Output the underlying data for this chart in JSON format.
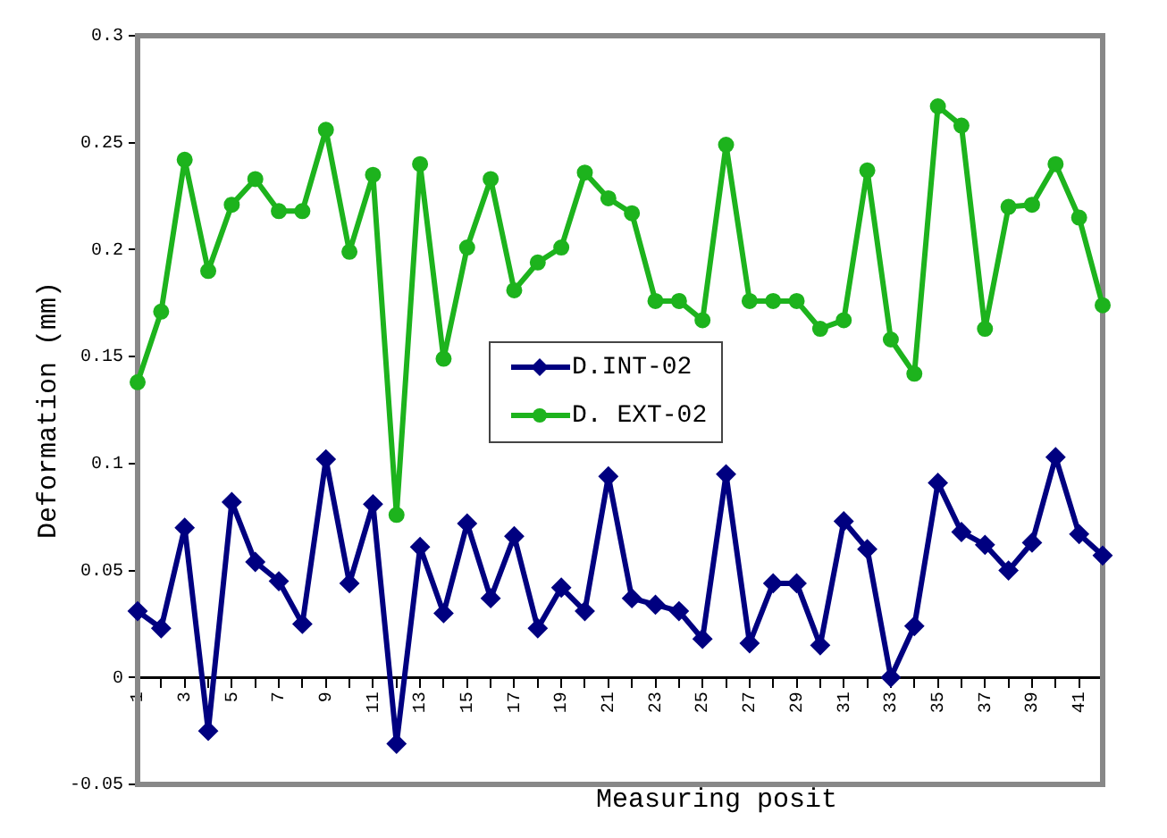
{
  "chart_data": {
    "type": "line",
    "xlabel": "Measuring posit",
    "ylabel": "Deformation (mm)",
    "categories": [
      "1",
      null,
      "3",
      null,
      "5",
      null,
      "7",
      null,
      "9",
      null,
      "11",
      null,
      "13",
      null,
      "15",
      null,
      "17",
      null,
      "19",
      null,
      "21",
      null,
      "23",
      null,
      "25",
      null,
      "27",
      null,
      "29",
      null,
      "31",
      null,
      "33",
      null,
      "35",
      null,
      "37",
      null,
      "39",
      null,
      "41",
      null
    ],
    "series": [
      {
        "name": "D.INT-02",
        "color": "#000080",
        "marker": "diamond",
        "values": [
          0.031,
          0.023,
          0.07,
          -0.025,
          0.082,
          0.054,
          0.045,
          0.025,
          0.102,
          0.044,
          0.081,
          -0.031,
          0.061,
          0.03,
          0.072,
          0.037,
          0.066,
          0.023,
          0.042,
          0.031,
          0.094,
          0.037,
          0.034,
          0.031,
          0.018,
          0.095,
          0.016,
          0.044,
          0.044,
          0.015,
          0.073,
          0.06,
          0.0,
          0.024,
          0.091,
          0.068,
          0.062,
          0.05,
          0.063,
          0.103,
          0.067,
          0.057
        ]
      },
      {
        "name": "D. EXT-02",
        "color": "#1db31d",
        "marker": "circle",
        "values": [
          0.138,
          0.171,
          0.242,
          0.19,
          0.221,
          0.233,
          0.218,
          0.218,
          0.256,
          0.199,
          0.235,
          0.076,
          0.24,
          0.149,
          0.201,
          0.233,
          0.181,
          0.194,
          0.201,
          0.236,
          0.224,
          0.217,
          0.176,
          0.176,
          0.167,
          0.249,
          0.176,
          0.176,
          0.176,
          0.163,
          0.167,
          0.237,
          0.158,
          0.142,
          0.267,
          0.258,
          0.163,
          0.22,
          0.221,
          0.24,
          0.215,
          0.174
        ]
      }
    ],
    "ylim": [
      -0.05,
      0.3
    ],
    "yticks": [
      -0.05,
      0,
      0.05,
      0.1,
      0.15,
      0.2,
      0.25,
      0.3
    ],
    "legend": "center",
    "line_style": "solid"
  }
}
